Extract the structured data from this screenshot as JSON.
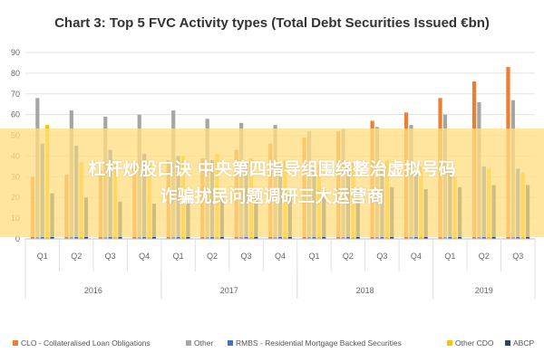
{
  "chart_data": {
    "type": "bar",
    "title": "Chart 3: Top 5 FVC Activity types (Total Debt Securities Issued €bn)",
    "ylim": [
      0,
      90
    ],
    "yticks": [
      0,
      10,
      20,
      30,
      40,
      50,
      60,
      70,
      80,
      90
    ],
    "grid": true,
    "legend_position": "bottom",
    "categories": [
      "Q1",
      "Q2",
      "Q3",
      "Q4",
      "Q1",
      "Q2",
      "Q3",
      "Q4",
      "Q1",
      "Q2",
      "Q3",
      "Q4",
      "Q1",
      "Q2",
      "Q3"
    ],
    "years": [
      {
        "label": "2016",
        "span": [
          0,
          3
        ]
      },
      {
        "label": "2017",
        "span": [
          4,
          7
        ]
      },
      {
        "label": "2018",
        "span": [
          8,
          11
        ]
      },
      {
        "label": "2019",
        "span": [
          12,
          14
        ]
      }
    ],
    "series": [
      {
        "name": "CLO - Collateralised Loan Obligations",
        "color": "#ed7d31",
        "values": [
          30,
          31,
          33,
          35,
          38,
          39,
          43,
          46,
          49,
          52,
          57,
          61,
          68,
          76,
          83
        ]
      },
      {
        "name": "Other",
        "color": "#a5a5a5",
        "values": [
          68,
          62,
          59,
          60,
          62,
          58,
          56,
          55,
          52,
          53,
          54,
          55,
          60,
          66,
          67
        ]
      },
      {
        "name": "RMBS - Residential Mortgage Backed Securities",
        "color": "#4472c4",
        "values": [
          46,
          45,
          43,
          41,
          40,
          38,
          37,
          36,
          35,
          35,
          34,
          33,
          32,
          35,
          34
        ]
      },
      {
        "name": "Other CDO",
        "color": "#ffc000",
        "values": [
          55,
          37,
          36,
          38,
          40,
          41,
          39,
          38,
          36,
          37,
          38,
          35,
          30,
          34,
          32
        ]
      },
      {
        "name": "ABCP",
        "color": "#264478",
        "values": [
          22,
          20,
          18,
          17,
          19,
          20,
          21,
          22,
          23,
          24,
          25,
          24,
          25,
          26,
          26
        ]
      }
    ]
  },
  "overlay": {
    "line1": "杠杆炒股口诀 中央第四指导组围绕整治虚拟号码",
    "line2": "诈骗扰民问题调研三大运营商"
  }
}
